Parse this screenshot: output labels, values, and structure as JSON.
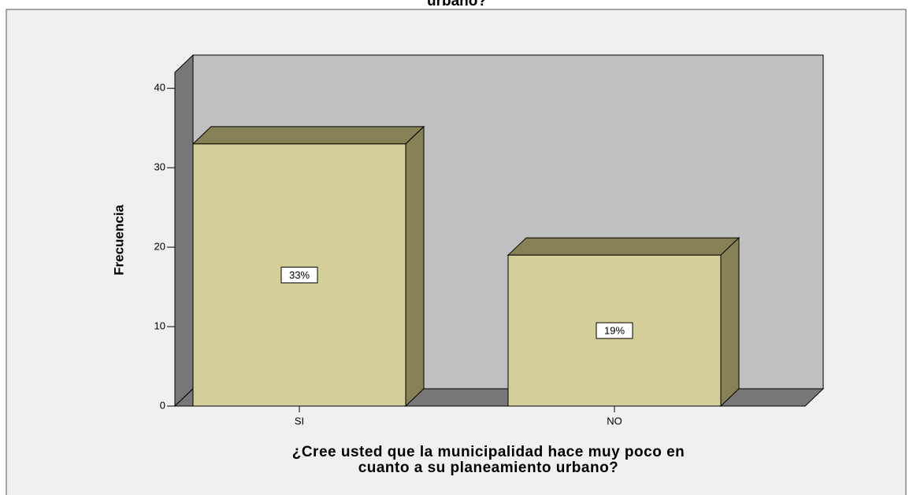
{
  "chart_data": {
    "type": "bar3d",
    "title": "urbano?",
    "y_label": "Frecuencia",
    "x_label": [
      "¿Cree usted  que la municipalidad hace muy poco en",
      "cuanto a su planeamiento urbano?"
    ],
    "categories": [
      "SI",
      "NO"
    ],
    "values": [
      33,
      19
    ],
    "value_labels": [
      "33%",
      "19%"
    ],
    "color": "#d4cf99",
    "ylim": [
      0,
      42
    ],
    "yticks": [
      0,
      10,
      20,
      30,
      40
    ]
  }
}
